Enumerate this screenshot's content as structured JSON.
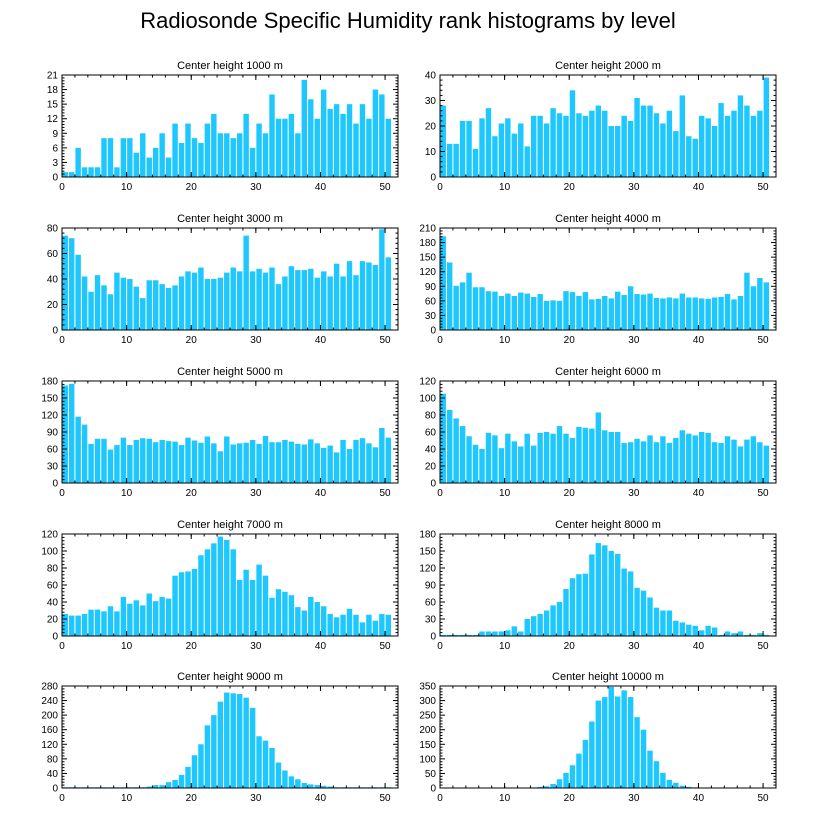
{
  "title": "Radiosonde Specific Humidity rank histograms by level",
  "colors": {
    "bar": "#1ec8ff",
    "axis": "#000000",
    "background": "#ffffff"
  },
  "chart_data": [
    {
      "type": "bar",
      "title": "Center height 1000 m",
      "xlim": [
        0,
        52
      ],
      "xticks": [
        0,
        10,
        20,
        30,
        40,
        50
      ],
      "ylim": [
        0,
        21
      ],
      "yticks": [
        0,
        3,
        6,
        9,
        12,
        15,
        18,
        21
      ],
      "values": [
        1,
        1,
        6,
        2,
        2,
        2,
        8,
        8,
        2,
        8,
        8,
        5,
        9,
        4,
        6,
        9,
        4,
        11,
        7,
        11,
        8,
        7,
        11,
        13,
        9,
        9,
        8,
        9,
        13,
        6,
        11,
        9,
        17,
        12,
        12,
        13,
        9,
        20,
        16,
        12,
        18,
        14,
        15,
        13,
        15,
        11,
        15,
        12,
        18,
        17,
        12
      ]
    },
    {
      "type": "bar",
      "title": "Center height 2000 m",
      "xlim": [
        0,
        52
      ],
      "xticks": [
        0,
        10,
        20,
        30,
        40,
        50
      ],
      "ylim": [
        0,
        40
      ],
      "yticks": [
        0,
        10,
        20,
        30,
        40
      ],
      "values": [
        28,
        13,
        13,
        22,
        22,
        11,
        23,
        27,
        16,
        21,
        23,
        17,
        21,
        12,
        24,
        24,
        21,
        27,
        25,
        24,
        34,
        25,
        24,
        26,
        28,
        26,
        20,
        20,
        24,
        22,
        31,
        28,
        28,
        25,
        21,
        26,
        18,
        32,
        16,
        15,
        24,
        23,
        20,
        29,
        24,
        26,
        32,
        28,
        24,
        26,
        39
      ]
    },
    {
      "type": "bar",
      "title": "Center height 3000 m",
      "xlim": [
        0,
        52
      ],
      "xticks": [
        0,
        10,
        20,
        30,
        40,
        50
      ],
      "ylim": [
        0,
        80
      ],
      "yticks": [
        0,
        20,
        40,
        60,
        80
      ],
      "values": [
        74,
        72,
        59,
        42,
        30,
        43,
        35,
        28,
        45,
        41,
        40,
        34,
        25,
        39,
        39,
        36,
        33,
        35,
        42,
        46,
        45,
        49,
        40,
        40,
        41,
        45,
        49,
        46,
        74,
        46,
        48,
        45,
        49,
        36,
        42,
        50,
        47,
        47,
        48,
        41,
        46,
        42,
        52,
        42,
        54,
        43,
        54,
        53,
        51,
        79,
        57
      ]
    },
    {
      "type": "bar",
      "title": "Center height 4000 m",
      "xlim": [
        0,
        52
      ],
      "xticks": [
        0,
        10,
        20,
        30,
        40,
        50
      ],
      "ylim": [
        0,
        210
      ],
      "yticks": [
        0,
        30,
        60,
        90,
        120,
        150,
        180,
        210
      ],
      "values": [
        193,
        139,
        91,
        98,
        118,
        88,
        88,
        80,
        79,
        70,
        75,
        70,
        77,
        75,
        68,
        74,
        60,
        61,
        60,
        80,
        78,
        70,
        78,
        63,
        64,
        70,
        65,
        79,
        72,
        90,
        74,
        73,
        75,
        66,
        65,
        67,
        65,
        75,
        67,
        67,
        65,
        64,
        67,
        68,
        74,
        63,
        70,
        118,
        90,
        107,
        98
      ]
    },
    {
      "type": "bar",
      "title": "Center height 5000 m",
      "xlim": [
        0,
        52
      ],
      "xticks": [
        0,
        10,
        20,
        30,
        40,
        50
      ],
      "ylim": [
        0,
        180
      ],
      "yticks": [
        0,
        30,
        60,
        90,
        120,
        150,
        180
      ],
      "values": [
        172,
        175,
        117,
        103,
        69,
        78,
        78,
        59,
        67,
        80,
        67,
        76,
        79,
        78,
        72,
        76,
        74,
        73,
        67,
        80,
        75,
        71,
        82,
        70,
        56,
        82,
        68,
        70,
        71,
        76,
        69,
        83,
        72,
        72,
        76,
        73,
        69,
        68,
        77,
        70,
        62,
        66,
        54,
        76,
        60,
        76,
        79,
        70,
        63,
        97,
        80
      ]
    },
    {
      "type": "bar",
      "title": "Center height 6000 m",
      "xlim": [
        0,
        52
      ],
      "xticks": [
        0,
        10,
        20,
        30,
        40,
        50
      ],
      "ylim": [
        0,
        120
      ],
      "yticks": [
        0,
        20,
        40,
        60,
        80,
        100,
        120
      ],
      "values": [
        105,
        86,
        76,
        67,
        55,
        45,
        40,
        59,
        56,
        41,
        58,
        49,
        43,
        58,
        44,
        59,
        60,
        58,
        67,
        58,
        53,
        66,
        65,
        64,
        83,
        62,
        60,
        60,
        47,
        48,
        52,
        49,
        56,
        48,
        55,
        47,
        53,
        62,
        58,
        56,
        60,
        59,
        48,
        47,
        55,
        51,
        43,
        51,
        55,
        48,
        44
      ]
    },
    {
      "type": "bar",
      "title": "Center height 7000 m",
      "xlim": [
        0,
        52
      ],
      "xticks": [
        0,
        10,
        20,
        30,
        40,
        50
      ],
      "ylim": [
        0,
        120
      ],
      "yticks": [
        0,
        20,
        40,
        60,
        80,
        100,
        120
      ],
      "values": [
        26,
        24,
        24,
        26,
        31,
        31,
        29,
        35,
        29,
        46,
        38,
        42,
        36,
        50,
        41,
        46,
        44,
        71,
        75,
        76,
        79,
        95,
        102,
        109,
        117,
        113,
        102,
        66,
        78,
        66,
        84,
        71,
        45,
        55,
        52,
        48,
        34,
        30,
        46,
        40,
        35,
        26,
        22,
        25,
        32,
        25,
        16,
        25,
        18,
        26,
        25
      ]
    },
    {
      "type": "bar",
      "title": "Center height 8000 m",
      "xlim": [
        0,
        52
      ],
      "xticks": [
        0,
        10,
        20,
        30,
        40,
        50
      ],
      "ylim": [
        0,
        180
      ],
      "yticks": [
        0,
        30,
        60,
        90,
        120,
        150,
        180
      ],
      "values": [
        2,
        2,
        2,
        2,
        2,
        2,
        8,
        8,
        8,
        8,
        10,
        17,
        8,
        30,
        35,
        39,
        45,
        54,
        60,
        83,
        102,
        109,
        110,
        144,
        164,
        160,
        150,
        145,
        119,
        114,
        85,
        80,
        68,
        50,
        45,
        45,
        27,
        24,
        20,
        18,
        10,
        18,
        15,
        2,
        8,
        5,
        8,
        2,
        2,
        5,
        2
      ]
    },
    {
      "type": "bar",
      "title": "Center height 9000 m",
      "xlim": [
        0,
        52
      ],
      "xticks": [
        0,
        10,
        20,
        30,
        40,
        50
      ],
      "ylim": [
        0,
        280
      ],
      "yticks": [
        0,
        40,
        80,
        120,
        160,
        200,
        240,
        280
      ],
      "values": [
        2,
        2,
        2,
        2,
        2,
        2,
        2,
        2,
        2,
        2,
        2,
        2,
        2,
        4,
        8,
        8,
        16,
        22,
        36,
        58,
        90,
        120,
        172,
        200,
        237,
        262,
        260,
        258,
        248,
        220,
        142,
        130,
        110,
        70,
        48,
        32,
        24,
        14,
        10,
        8,
        6,
        4,
        2,
        2,
        2,
        2,
        2,
        2,
        2,
        2,
        2
      ]
    },
    {
      "type": "bar",
      "title": "Center height 10000 m",
      "xlim": [
        0,
        52
      ],
      "xticks": [
        0,
        10,
        20,
        30,
        40,
        50
      ],
      "ylim": [
        0,
        350
      ],
      "yticks": [
        0,
        50,
        100,
        150,
        200,
        250,
        300,
        350
      ],
      "values": [
        1,
        1,
        1,
        1,
        1,
        1,
        1,
        1,
        1,
        1,
        1,
        1,
        1,
        1,
        2,
        4,
        6,
        14,
        30,
        52,
        78,
        118,
        165,
        228,
        300,
        312,
        347,
        314,
        335,
        312,
        243,
        200,
        128,
        92,
        52,
        28,
        18,
        8,
        4,
        2,
        1,
        1,
        1,
        1,
        1,
        1,
        1,
        1,
        1,
        1,
        1
      ]
    }
  ]
}
